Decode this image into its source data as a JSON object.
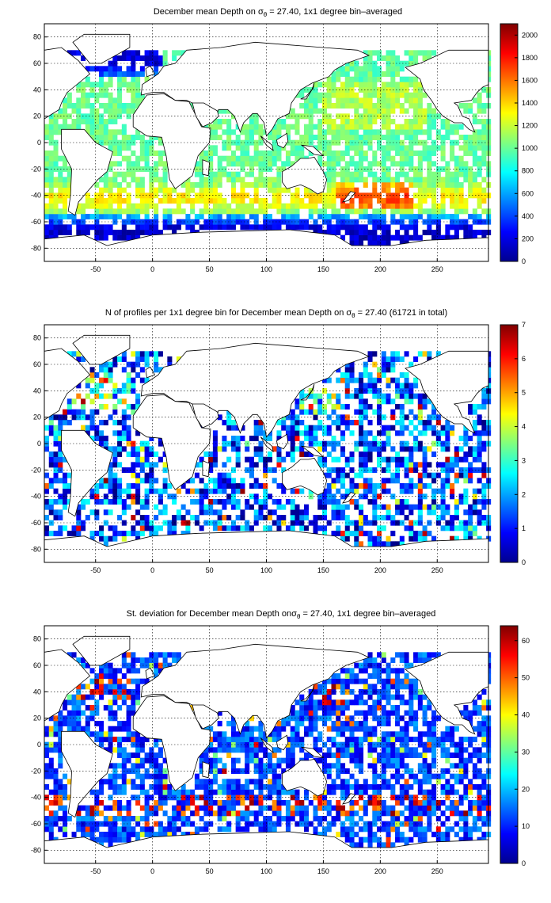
{
  "chart_data": [
    {
      "type": "heatmap",
      "title": {
        "pre": "December mean Depth on ",
        "sigma": "σ",
        "sub": "θ",
        "post": " = 27.40, 1x1 degree bin–averaged"
      },
      "xticks": [
        "-50",
        "0",
        "50",
        "100",
        "150",
        "200",
        "250"
      ],
      "xlim": [
        -95,
        295
      ],
      "yticks": [
        "80",
        "60",
        "40",
        "20",
        "0",
        "-20",
        "-40",
        "-60",
        "-80"
      ],
      "ylim": [
        -90,
        90
      ],
      "colorbar": {
        "range": [
          0,
          2100
        ],
        "ticks": [
          "2000",
          "1800",
          "1600",
          "1400",
          "1200",
          "1000",
          "800",
          "600",
          "400",
          "200",
          "0"
        ],
        "tick_values": [
          2000,
          1800,
          1600,
          1400,
          1200,
          1000,
          800,
          600,
          400,
          200,
          0
        ]
      },
      "grid": true,
      "colormap": "jet"
    },
    {
      "type": "heatmap",
      "title": {
        "pre": "N of profiles per 1x1 degree bin for December mean Depth on ",
        "sigma": "σ",
        "sub": "θ",
        "post": " = 27.40 (61721 in total)"
      },
      "xticks": [
        "-50",
        "0",
        "50",
        "100",
        "150",
        "200",
        "250"
      ],
      "xlim": [
        -95,
        295
      ],
      "yticks": [
        "80",
        "60",
        "40",
        "20",
        "0",
        "-20",
        "-40",
        "-60",
        "-80"
      ],
      "ylim": [
        -90,
        90
      ],
      "colorbar": {
        "range": [
          0,
          7
        ],
        "ticks": [
          "7",
          "6",
          "5",
          "4",
          "3",
          "2",
          "1",
          "0"
        ],
        "tick_values": [
          7,
          6,
          5,
          4,
          3,
          2,
          1,
          0
        ]
      },
      "grid": true,
      "colormap": "jet"
    },
    {
      "type": "heatmap",
      "title": {
        "pre": "St. deviation for December mean Depth on",
        "sigma": "σ",
        "sub": "θ",
        "post": " = 27.40, 1x1 degree bin–averaged"
      },
      "xticks": [
        "-50",
        "0",
        "50",
        "100",
        "150",
        "200",
        "250"
      ],
      "xlim": [
        -95,
        295
      ],
      "yticks": [
        "80",
        "60",
        "40",
        "20",
        "0",
        "-20",
        "-40",
        "-60",
        "-80"
      ],
      "ylim": [
        -90,
        90
      ],
      "colorbar": {
        "range": [
          0,
          64
        ],
        "ticks": [
          "60",
          "50",
          "40",
          "30",
          "20",
          "10",
          "0"
        ],
        "tick_values": [
          60,
          50,
          40,
          30,
          20,
          10,
          0
        ]
      },
      "grid": true,
      "colormap": "jet"
    }
  ]
}
